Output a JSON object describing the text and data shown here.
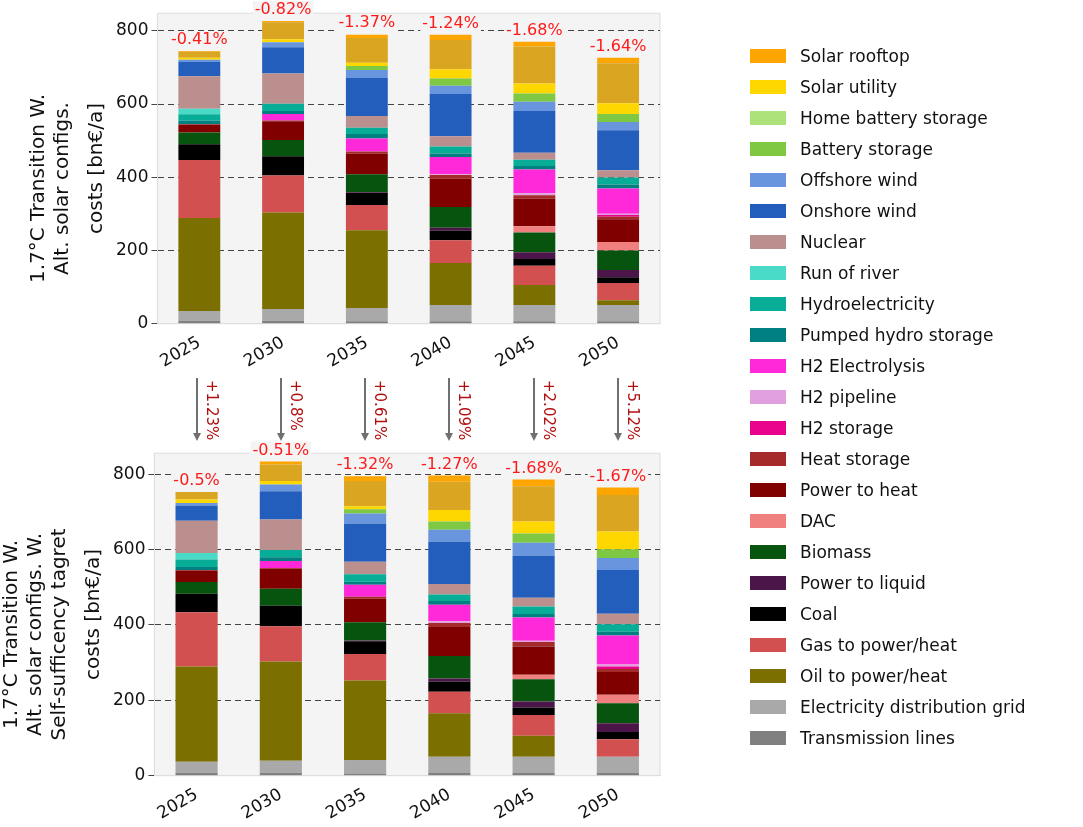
{
  "chart_data": [
    {
      "type": "bar",
      "stacked": true,
      "title": "1.7°C Transition W.\nAlt. solar configs.",
      "ylabel": "costs [bn€/a]",
      "categories": [
        "2025",
        "2030",
        "2035",
        "2040",
        "2045",
        "2050"
      ],
      "ylim": [
        0,
        848
      ],
      "yticks": [
        0,
        200,
        400,
        600,
        800
      ],
      "grid": "y",
      "legend": "right",
      "annotations": [
        {
          "text": "-0.41%",
          "x": "2025",
          "y": 745
        },
        {
          "text": "-0.82%",
          "x": "2030",
          "y": 827
        },
        {
          "text": "-1.37%",
          "x": "2035",
          "y": 791
        },
        {
          "text": "-1.24%",
          "x": "2040",
          "y": 789
        },
        {
          "text": "-1.68%",
          "x": "2045",
          "y": 770
        },
        {
          "text": "-1.64%",
          "x": "2050",
          "y": 726
        }
      ],
      "series": [
        {
          "name": "Transmission lines",
          "color": "#808080",
          "values": [
            8,
            8,
            7,
            7,
            7,
            7
          ]
        },
        {
          "name": "Electricity distribution grid",
          "color": "#a9a9a9",
          "values": [
            27,
            32,
            36,
            44,
            44,
            44
          ]
        },
        {
          "name": "Oil to power/heat",
          "color": "#7b6f00",
          "values": [
            254,
            264,
            212,
            115,
            55,
            13
          ]
        },
        {
          "name": "Gas to power/heat",
          "color": "#d35050",
          "values": [
            158,
            101,
            69,
            62,
            52,
            47
          ]
        },
        {
          "name": "Coal",
          "color": "#000000",
          "values": [
            43,
            52,
            33,
            26,
            19,
            16
          ]
        },
        {
          "name": "Power to liquid",
          "color": "#4c1549",
          "values": [
            0,
            0,
            2,
            8,
            18,
            20
          ]
        },
        {
          "name": "Biomass",
          "color": "#06540d",
          "values": [
            32,
            45,
            49,
            57,
            54,
            53
          ]
        },
        {
          "name": "DAC",
          "color": "#f08080",
          "values": [
            0,
            0,
            0,
            0,
            17,
            23
          ]
        },
        {
          "name": "Power to heat",
          "color": "#800000",
          "values": [
            21,
            51,
            57,
            77,
            75,
            62
          ]
        },
        {
          "name": "Heat storage",
          "color": "#a52a2a",
          "values": [
            2,
            2,
            5,
            10,
            10,
            7
          ]
        },
        {
          "name": "H2 storage",
          "color": "#e8038c",
          "values": [
            0,
            0,
            0,
            0,
            0,
            5
          ]
        },
        {
          "name": "H2 pipeline",
          "color": "#e0a0e0",
          "values": [
            0,
            0,
            null,
            2,
            5,
            3
          ]
        },
        {
          "name": "H2 Electrolysis",
          "color": "#ff29d9",
          "values": [
            0,
            18,
            36,
            47,
            65,
            69
          ]
        },
        {
          "name": "Pumped hydro storage",
          "color": "#008080",
          "values": [
            9,
            8,
            12,
            10,
            10,
            11
          ]
        },
        {
          "name": "Hydroelectricity",
          "color": "#08ad97",
          "values": [
            18,
            20,
            17,
            19,
            17,
            19
          ]
        },
        {
          "name": "Run of river",
          "color": "#4adbc8",
          "values": [
            15,
            0,
            0,
            0,
            0,
            0
          ]
        },
        {
          "name": "Nuclear",
          "color": "#bc8f8f",
          "values": [
            89,
            82,
            32,
            28,
            19,
            20
          ]
        },
        {
          "name": "Onshore wind",
          "color": "#235ebc",
          "values": [
            39,
            72,
            104,
            115,
            114,
            109
          ]
        },
        {
          "name": "Offshore wind",
          "color": "#6895dd",
          "values": [
            6,
            14,
            22,
            23,
            25,
            23
          ]
        },
        {
          "name": "Battery storage",
          "color": "#7fc843",
          "values": [
            0,
            0,
            11,
            20,
            23,
            22
          ]
        },
        {
          "name": "Home battery storage",
          "color": "#ade27a",
          "values": [
            0,
            0,
            0,
            0,
            0,
            0
          ]
        },
        {
          "name": "Solar utility",
          "color": "#ffd700",
          "values": [
            5,
            8,
            9,
            25,
            27,
            29
          ]
        },
        {
          "color": "#daa520",
          "values": [
            17,
            46,
            67,
            80,
            101,
            109
          ]
        },
        {
          "name": "Solar rooftop",
          "color": "#ffa500",
          "values": [
            2,
            4,
            9,
            14,
            13,
            15
          ]
        }
      ]
    },
    {
      "type": "bar",
      "stacked": true,
      "title": "1.7°C Transition W.\nAlt. solar configs. W.\nSelf-sufficency tagret",
      "ylabel": "costs [bn€/a]",
      "categories": [
        "2025",
        "2030",
        "2035",
        "2040",
        "2045",
        "2050"
      ],
      "ylim": [
        0,
        856
      ],
      "yticks": [
        0,
        200,
        400,
        600,
        800
      ],
      "grid": "y",
      "annotations": [
        {
          "text": "-0.5%",
          "x": "2025",
          "y": 754
        },
        {
          "text": "-0.51%",
          "x": "2030",
          "y": 834
        },
        {
          "text": "-1.32%",
          "x": "2035",
          "y": 797
        },
        {
          "text": "-1.27%",
          "x": "2040",
          "y": 797
        },
        {
          "text": "-1.68%",
          "x": "2045",
          "y": 786
        },
        {
          "text": "-1.67%",
          "x": "2050",
          "y": 765
        },
        "+1.23%",
        "+0.8%",
        "+0.61%",
        "+1.09%",
        "+2.02%",
        "+5.12%"
      ],
      "series": [
        {
          "color": "#808080",
          "values": [
            8,
            8,
            6,
            7,
            7,
            7
          ]
        },
        {
          "color": "#a9a9a9",
          "values": [
            29,
            32,
            36,
            43,
            43,
            43
          ]
        },
        {
          "color": "#7b6f00",
          "values": [
            253,
            263,
            211,
            116,
            56,
            0
          ]
        },
        {
          "color": "#d35050",
          "values": [
            144,
            94,
            70,
            57,
            55,
            47
          ]
        },
        {
          "color": "#000000",
          "values": [
            49,
            54,
            34,
            27,
            20,
            19
          ]
        },
        {
          "color": "#4c1549",
          "values": [
            0,
            0,
            2,
            8,
            16,
            23
          ]
        },
        {
          "color": "#06540d",
          "values": [
            31,
            45,
            48,
            60,
            59,
            53
          ]
        },
        {
          "color": "#f08080",
          "values": [
            0,
            0,
            0,
            0,
            12,
            23
          ]
        },
        {
          "color": "#800000",
          "values": [
            30,
            53,
            63,
            77,
            75,
            60
          ]
        },
        {
          "color": "#a52a2a",
          "values": [
            2,
            2,
            5,
            10,
            12,
            8
          ]
        },
        {
          "color": "#e8038c",
          "values": [
            0,
            0,
            0,
            0,
            0,
            7
          ]
        },
        {
          "color": "#e0a0e0",
          "values": [
            0,
            0,
            null,
            5,
            3,
            5
          ]
        },
        {
          "color": "#ff29d9",
          "values": [
            0,
            19,
            32,
            44,
            62,
            77
          ]
        },
        {
          "color": "#008080",
          "values": [
            8,
            10,
            8,
            10,
            9,
            10
          ]
        },
        {
          "color": "#08ad97",
          "values": [
            20,
            19,
            20,
            17,
            20,
            20
          ]
        },
        {
          "color": "#4adbc8",
          "values": [
            17,
            0,
            0,
            0,
            0,
            0
          ]
        },
        {
          "color": "#bc8f8f",
          "values": [
            86,
            81,
            33,
            28,
            23,
            28
          ]
        },
        {
          "color": "#235ebc",
          "values": [
            40,
            75,
            101,
            112,
            112,
            116
          ]
        },
        {
          "color": "#6895dd",
          "values": [
            7,
            18,
            27,
            32,
            34,
            32
          ]
        },
        {
          "color": "#7fc843",
          "values": [
            0,
            0,
            11,
            22,
            25,
            23
          ]
        },
        {
          "color": "#ade27a",
          "values": [
            0,
            0,
            0,
            0,
            0,
            0
          ]
        },
        {
          "color": "#ffd700",
          "values": [
            9,
            9,
            8,
            30,
            32,
            47
          ]
        },
        {
          "color": "#daa520",
          "values": [
            20,
            44,
            67,
            75,
            93,
            97
          ]
        },
        {
          "color": "#ffa500",
          "values": [
            null,
            8,
            13,
            17,
            18,
            20
          ]
        }
      ]
    }
  ]
}
